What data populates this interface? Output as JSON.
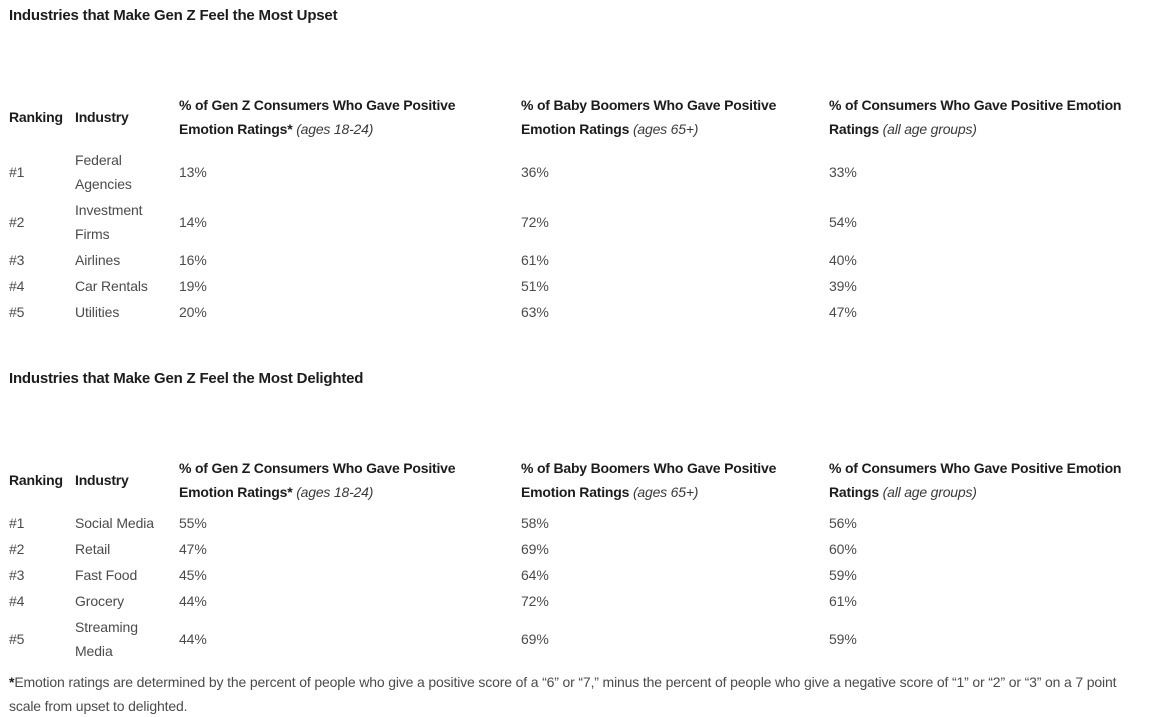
{
  "colors": {
    "background": "#ffffff",
    "heading_text": "#1c1c1c",
    "body_text": "#4b4b4b"
  },
  "tables": [
    {
      "title": "Industries that Make Gen Z Feel the Most Upset",
      "headers": {
        "ranking": "Ranking",
        "industry": "Industry",
        "genz_label": "% of Gen Z Consumers Who Gave Positive Emotion Ratings*",
        "genz_note": "(ages 18-24)",
        "boomers_label": "% of Baby Boomers Who Gave Positive Emotion Ratings",
        "boomers_note": "(ages 65+)",
        "all_label": "% of Consumers Who Gave Positive Emotion Ratings",
        "all_note": "(all age groups)"
      },
      "rows": [
        {
          "ranking": "#1",
          "industry": "Federal Agencies",
          "genz": "13%",
          "boomers": "36%",
          "all": "33%"
        },
        {
          "ranking": "#2",
          "industry": "Investment Firms",
          "genz": "14%",
          "boomers": "72%",
          "all": "54%"
        },
        {
          "ranking": "#3",
          "industry": "Airlines",
          "genz": "16%",
          "boomers": "61%",
          "all": "40%"
        },
        {
          "ranking": "#4",
          "industry": "Car Rentals",
          "genz": "19%",
          "boomers": "51%",
          "all": "39%"
        },
        {
          "ranking": "#5",
          "industry": "Utilities",
          "genz": "20%",
          "boomers": "63%",
          "all": "47%"
        }
      ]
    },
    {
      "title": "Industries that Make Gen Z Feel the Most Delighted",
      "headers": {
        "ranking": "Ranking",
        "industry": "Industry",
        "genz_label": "% of Gen Z Consumers Who Gave Positive Emotion Ratings*",
        "genz_note": "(ages 18-24)",
        "boomers_label": "% of Baby Boomers Who Gave Positive Emotion Ratings",
        "boomers_note": "(ages 65+)",
        "all_label": "% of Consumers Who Gave Positive Emotion Ratings",
        "all_note": "(all age groups)"
      },
      "rows": [
        {
          "ranking": "#1",
          "industry": "Social Media",
          "genz": "55%",
          "boomers": "58%",
          "all": "56%"
        },
        {
          "ranking": "#2",
          "industry": "Retail",
          "genz": "47%",
          "boomers": "69%",
          "all": "60%"
        },
        {
          "ranking": "#3",
          "industry": "Fast Food",
          "genz": "45%",
          "boomers": "64%",
          "all": "59%"
        },
        {
          "ranking": "#4",
          "industry": "Grocery",
          "genz": "44%",
          "boomers": "72%",
          "all": "61%"
        },
        {
          "ranking": "#5",
          "industry": "Streaming Media",
          "genz": "44%",
          "boomers": "69%",
          "all": "59%"
        }
      ]
    }
  ],
  "footnote": {
    "marker": "*",
    "text": "Emotion ratings are determined by the percent of people who give a positive score of a “6” or “7,” minus the percent of people who give a negative score of “1” or “2” or “3” on a 7 point scale from upset to delighted."
  }
}
